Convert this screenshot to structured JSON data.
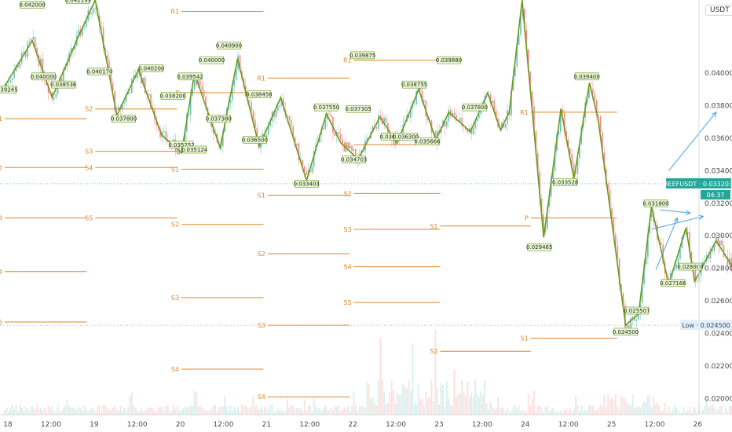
{
  "header": {
    "currency_label": "USDT"
  },
  "colors": {
    "pivot": "#e0852a",
    "zigzag": "#6a9a1e",
    "zigzag_label_bg": "#eaf5d7",
    "arrow": "#4aa3df",
    "price_tag": "#26a69a",
    "low_tag": "#e3eef7",
    "candle_up": "#26a69a",
    "candle_down": "#ef5350"
  },
  "price_tags": {
    "symbol": "REEFUSDT",
    "last_price": "0.033203",
    "last_price_value": 0.033203,
    "countdown": "04:37",
    "low_label": "Low",
    "low_price": "0.024500",
    "low_value": 0.0245
  },
  "chart_data": {
    "type": "line",
    "title": "",
    "xlabel": "",
    "ylabel": "",
    "ylim": [
      0.019,
      0.0445
    ],
    "grid": false,
    "x_ticks": [
      "18",
      "12:00",
      "19",
      "12:00",
      "20",
      "12:00",
      "21",
      "12:00",
      "22",
      "12:00",
      "23",
      "12:00",
      "24",
      "12:00",
      "25",
      "12:00",
      "26"
    ],
    "y_ticks": [
      "0.040000",
      "0.038000",
      "0.036000",
      "0.034000",
      "0.032000",
      "0.030000",
      "0.028000",
      "0.026000",
      "0.024000",
      "0.022000",
      "0.020000"
    ],
    "y_tick_values": [
      0.04,
      0.038,
      0.036,
      0.034,
      0.032,
      0.03,
      0.028,
      0.026,
      0.024,
      0.022,
      0.02
    ],
    "zigzag": {
      "x": [
        0.0,
        0.32,
        0.55,
        0.85,
        1.05,
        1.3,
        1.55,
        1.82,
        2.05,
        2.2,
        2.5,
        2.7,
        2.95,
        3.2,
        3.5,
        3.73,
        3.9,
        4.1,
        4.35,
        4.55,
        4.8,
        5.0,
        5.15,
        5.4,
        5.6,
        5.75,
        5.85,
        6.0,
        6.25,
        6.45,
        6.6,
        6.78,
        6.88,
        7.2,
        7.35,
        7.5,
        7.7,
        7.9,
        8.0,
        8.25,
        8.45,
        8.6,
        8.7,
        8.95,
        9.05,
        9.25,
        9.4,
        9.55
      ],
      "y": [
        0.0392,
        0.042,
        0.0385,
        0.0422,
        0.0445,
        0.0374,
        0.0402,
        0.0362,
        0.0351,
        0.04,
        0.0354,
        0.0409,
        0.0355,
        0.0385,
        0.0334,
        0.0375,
        0.0357,
        0.0347,
        0.0373,
        0.0357,
        0.039,
        0.0359,
        0.0376,
        0.0364,
        0.0388,
        0.0365,
        0.0376,
        0.0445,
        0.0299,
        0.0378,
        0.0335,
        0.0394,
        0.0372,
        0.0245,
        0.0252,
        0.0318,
        0.027,
        0.0305,
        0.0272,
        0.0297,
        0.028,
        0.0285,
        0.03,
        0.0315,
        0.0308,
        0.0322,
        0.0332,
        0.0332
      ]
    },
    "zigzag_labels": [
      {
        "text": "0.039245",
        "x": 0.0,
        "y": 0.039
      },
      {
        "text": "0.042000",
        "x": 0.32,
        "y": 0.0442
      },
      {
        "text": "0.042199",
        "x": 0.85,
        "y": 0.0445
      },
      {
        "text": "0.040000",
        "x": 0.45,
        "y": 0.0398
      },
      {
        "text": "0.038536",
        "x": 0.68,
        "y": 0.0393
      },
      {
        "text": "0.040170",
        "x": 1.1,
        "y": 0.0401
      },
      {
        "text": "0.037800",
        "x": 1.38,
        "y": 0.0372
      },
      {
        "text": "0.040200",
        "x": 1.7,
        "y": 0.0403
      },
      {
        "text": "0.038200",
        "x": 1.95,
        "y": 0.0386
      },
      {
        "text": "0.039542",
        "x": 2.15,
        "y": 0.0398
      },
      {
        "text": "0.035252",
        "x": 2.05,
        "y": 0.0356
      },
      {
        "text": "0.035124",
        "x": 2.2,
        "y": 0.0353
      },
      {
        "text": "0.040000",
        "x": 2.4,
        "y": 0.0408
      },
      {
        "text": "0.040900",
        "x": 2.6,
        "y": 0.0417
      },
      {
        "text": "0.037380",
        "x": 2.48,
        "y": 0.0372
      },
      {
        "text": "0.038458",
        "x": 2.95,
        "y": 0.0387
      },
      {
        "text": "0.036500",
        "x": 2.9,
        "y": 0.0359
      },
      {
        "text": "0.033403",
        "x": 3.5,
        "y": 0.0332
      },
      {
        "text": "0.037550",
        "x": 3.73,
        "y": 0.0379
      },
      {
        "text": "0.039875",
        "x": 4.15,
        "y": 0.0411
      },
      {
        "text": "0.037305",
        "x": 4.1,
        "y": 0.0378
      },
      {
        "text": "0.034703",
        "x": 4.05,
        "y": 0.0347
      },
      {
        "text": "0.036250",
        "x": 4.5,
        "y": 0.0361
      },
      {
        "text": "0.036300",
        "x": 4.65,
        "y": 0.0361
      },
      {
        "text": "0.038755",
        "x": 4.75,
        "y": 0.0393
      },
      {
        "text": "0.035666",
        "x": 4.9,
        "y": 0.0358
      },
      {
        "text": "0.039880",
        "x": 5.15,
        "y": 0.0408
      },
      {
        "text": "0.037800",
        "x": 5.45,
        "y": 0.0379
      },
      {
        "text": "0.039400",
        "x": 6.75,
        "y": 0.0398
      },
      {
        "text": "0.033528",
        "x": 6.5,
        "y": 0.0333
      },
      {
        "text": "0.029465",
        "x": 6.2,
        "y": 0.0293
      },
      {
        "text": "0.031800",
        "x": 7.55,
        "y": 0.032
      },
      {
        "text": "0.028000",
        "x": 7.95,
        "y": 0.0281
      },
      {
        "text": "0.027166",
        "x": 7.75,
        "y": 0.0271
      },
      {
        "text": "0.025507",
        "x": 7.33,
        "y": 0.0254
      },
      {
        "text": "0.024500",
        "x": 7.2,
        "y": 0.0241
      }
    ],
    "pivot_levels": [
      {
        "label": "R1",
        "y": 0.0438,
        "x0": 2.05,
        "x1": 3.0
      },
      {
        "label": "S1",
        "y": 0.0372,
        "x0": 0.0,
        "x1": 0.95
      },
      {
        "label": "S2",
        "y": 0.0378,
        "x0": 1.05,
        "x1": 2.0
      },
      {
        "label": "S3",
        "y": 0.0352,
        "x0": 1.05,
        "x1": 2.0
      },
      {
        "label": "P",
        "y": 0.0388,
        "x0": 2.05,
        "x1": 3.0
      },
      {
        "label": "S1",
        "y": 0.0341,
        "x0": 2.05,
        "x1": 3.0
      },
      {
        "label": "S2",
        "y": 0.0307,
        "x0": 2.05,
        "x1": 3.0
      },
      {
        "label": "S3",
        "y": 0.0262,
        "x0": 2.05,
        "x1": 3.0
      },
      {
        "label": "S4",
        "y": 0.0218,
        "x0": 2.05,
        "x1": 3.0
      },
      {
        "label": "S4",
        "y": 0.0342,
        "x0": 1.05,
        "x1": 2.0
      },
      {
        "label": "S5",
        "y": 0.0311,
        "x0": 1.05,
        "x1": 2.0
      },
      {
        "label": "S2",
        "y": 0.0342,
        "x0": 0.0,
        "x1": 0.95
      },
      {
        "label": "S3",
        "y": 0.0311,
        "x0": 0.0,
        "x1": 0.95
      },
      {
        "label": "S4",
        "y": 0.0278,
        "x0": 0.0,
        "x1": 0.95
      },
      {
        "label": "S5",
        "y": 0.0247,
        "x0": 0.0,
        "x1": 0.95
      },
      {
        "label": "R1",
        "y": 0.0397,
        "x0": 3.05,
        "x1": 4.0
      },
      {
        "label": "S1",
        "y": 0.0325,
        "x0": 3.05,
        "x1": 4.0
      },
      {
        "label": "S2",
        "y": 0.0289,
        "x0": 3.05,
        "x1": 4.0
      },
      {
        "label": "S3",
        "y": 0.0245,
        "x0": 3.05,
        "x1": 4.0
      },
      {
        "label": "S4",
        "y": 0.0201,
        "x0": 3.05,
        "x1": 4.0
      },
      {
        "label": "R1",
        "y": 0.0408,
        "x0": 4.05,
        "x1": 5.05
      },
      {
        "label": "S1",
        "y": 0.0356,
        "x0": 4.05,
        "x1": 5.05
      },
      {
        "label": "S2",
        "y": 0.0326,
        "x0": 4.05,
        "x1": 5.05
      },
      {
        "label": "S3",
        "y": 0.0304,
        "x0": 4.05,
        "x1": 5.05
      },
      {
        "label": "S4",
        "y": 0.0281,
        "x0": 4.05,
        "x1": 5.05
      },
      {
        "label": "S5",
        "y": 0.0259,
        "x0": 4.05,
        "x1": 5.05
      },
      {
        "label": "S1",
        "y": 0.0306,
        "x0": 5.05,
        "x1": 6.1
      },
      {
        "label": "S2",
        "y": 0.0229,
        "x0": 5.05,
        "x1": 6.1
      },
      {
        "label": "P",
        "y": 0.0311,
        "x0": 6.1,
        "x1": 7.1
      },
      {
        "label": "R1",
        "y": 0.0376,
        "x0": 6.1,
        "x1": 7.1
      },
      {
        "label": "S1",
        "y": 0.0237,
        "x0": 6.1,
        "x1": 7.1
      }
    ],
    "projection_arrows": [
      {
        "x": [
          7.6,
          7.95
        ],
        "y": [
          0.0316,
          0.0314
        ]
      },
      {
        "x": [
          7.5,
          8.1
        ],
        "y": [
          0.0304,
          0.0312
        ]
      },
      {
        "x": [
          7.7,
          8.25
        ],
        "y": [
          0.034,
          0.0376
        ]
      },
      {
        "x": [
          7.55,
          7.8
        ],
        "y": [
          0.0279,
          0.0311
        ]
      }
    ],
    "volume_profile": "low-and-flat-with-spikes-around-22"
  }
}
